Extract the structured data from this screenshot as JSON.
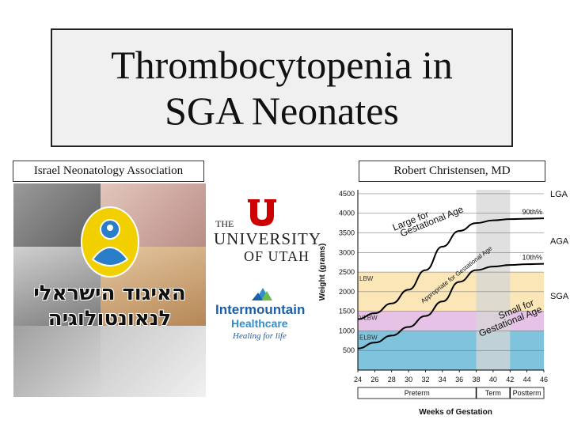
{
  "title": {
    "line1": "Thrombocytopenia in",
    "line2": "SGA Neonates"
  },
  "labels": {
    "left": "Israel Neonatology Association",
    "right": "Robert Christensen, MD"
  },
  "collage": {
    "hebrew_line1": "האיגוד הישראלי",
    "hebrew_line2": "לנאונטולוגיה"
  },
  "university": {
    "line1": "THE",
    "line2": "UNIVERSITY",
    "line3": "OF UTAH",
    "color": "#cc0000"
  },
  "intermountain": {
    "line1": "Intermountain",
    "line2": "Healthcare",
    "tagline": "Healing for life",
    "color": "#1d5fa8"
  },
  "chart_data": {
    "type": "line",
    "xlabel": "Weeks of Gestation",
    "ylabel": "Weight (grams)",
    "xlim": [
      24,
      46
    ],
    "ylim": [
      0,
      4600
    ],
    "x_ticks": [
      24,
      26,
      28,
      30,
      32,
      34,
      36,
      38,
      40,
      42,
      44,
      46
    ],
    "y_ticks": [
      500,
      1000,
      1500,
      2000,
      2500,
      3000,
      3500,
      4000,
      4500
    ],
    "bands": [
      {
        "label": "LBW",
        "from": 1500,
        "to": 2500,
        "color": "#fbe6b8"
      },
      {
        "label": "VLBW",
        "from": 1000,
        "to": 1500,
        "color": "#e6c3e6"
      },
      {
        "label": "ELBW",
        "from": 0,
        "to": 1000,
        "color": "#80c3dd"
      }
    ],
    "term_shade": {
      "from": 38,
      "to": 42,
      "color": "#d6d6d6"
    },
    "periods": [
      {
        "label": "Preterm",
        "from": 24,
        "to": 38
      },
      {
        "label": "Term",
        "from": 38,
        "to": 42
      },
      {
        "label": "Postterm",
        "from": 42,
        "to": 46
      }
    ],
    "series": [
      {
        "name": "90th%",
        "x": [
          24,
          26,
          28,
          30,
          32,
          34,
          36,
          38,
          40,
          42,
          44,
          46
        ],
        "y": [
          1300,
          1450,
          1700,
          2050,
          2550,
          3150,
          3550,
          3750,
          3820,
          3850,
          3860,
          3870
        ]
      },
      {
        "name": "10th%",
        "x": [
          24,
          26,
          28,
          30,
          32,
          34,
          36,
          38,
          40,
          42,
          44,
          46
        ],
        "y": [
          550,
          700,
          880,
          1100,
          1380,
          1750,
          2250,
          2550,
          2640,
          2680,
          2700,
          2710
        ]
      }
    ],
    "right_labels": [
      {
        "text": "LGA",
        "y": 4500
      },
      {
        "text": "AGA",
        "y": 3300
      },
      {
        "text": "SGA",
        "y": 1900
      }
    ],
    "annotations": [
      {
        "text": "Large for",
        "x": 28.3,
        "y": 3550
      },
      {
        "text": "Gestational Age",
        "x": 29.2,
        "y": 3400
      },
      {
        "text": "Appropriate for Gestational Age",
        "x": 31.7,
        "y": 1700
      },
      {
        "text": "Small for",
        "x": 40.8,
        "y": 1300
      },
      {
        "text": "Gestational Age",
        "x": 38.5,
        "y": 850
      }
    ]
  }
}
